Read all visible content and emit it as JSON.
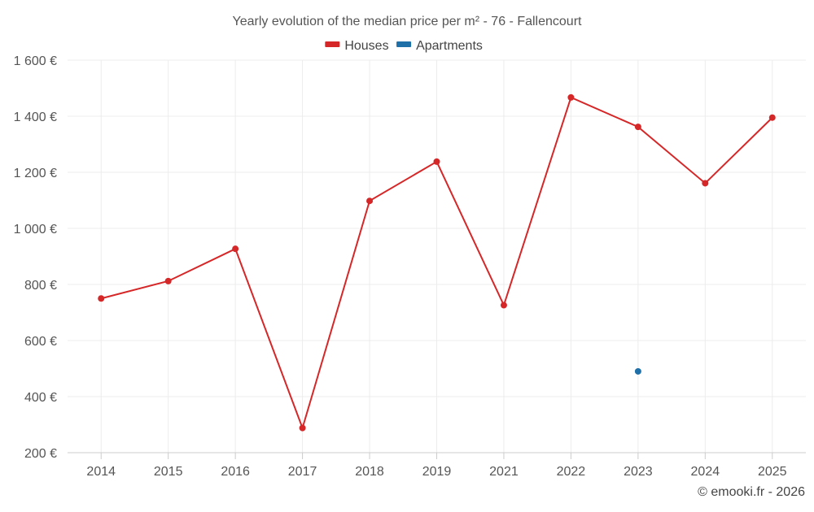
{
  "chart_data": {
    "type": "line",
    "title": "Yearly evolution of the median price per m² - 76 - Fallencourt",
    "categories": [
      "2014",
      "2015",
      "2016",
      "2017",
      "2018",
      "2019",
      "2021",
      "2022",
      "2023",
      "2024",
      "2025"
    ],
    "series": [
      {
        "name": "Houses",
        "color": "#d62728",
        "values": [
          750,
          812,
          927,
          288,
          1098,
          1238,
          726,
          1467,
          1362,
          1161,
          1395
        ]
      },
      {
        "name": "Apartments",
        "color": "#1f6fa8",
        "values": [
          null,
          null,
          null,
          null,
          null,
          null,
          null,
          null,
          490,
          null,
          null
        ]
      }
    ],
    "ylim": [
      200,
      1600
    ],
    "yticks": [
      200,
      400,
      600,
      800,
      1000,
      1200,
      1400,
      1600
    ],
    "ytick_labels": [
      "200 €",
      "400 €",
      "600 €",
      "800 €",
      "1 000 €",
      "1 200 €",
      "1 400 €",
      "1 600 €"
    ],
    "grid": true,
    "legend_position": "top-center"
  },
  "credit": "© emooki.fr - 2026"
}
